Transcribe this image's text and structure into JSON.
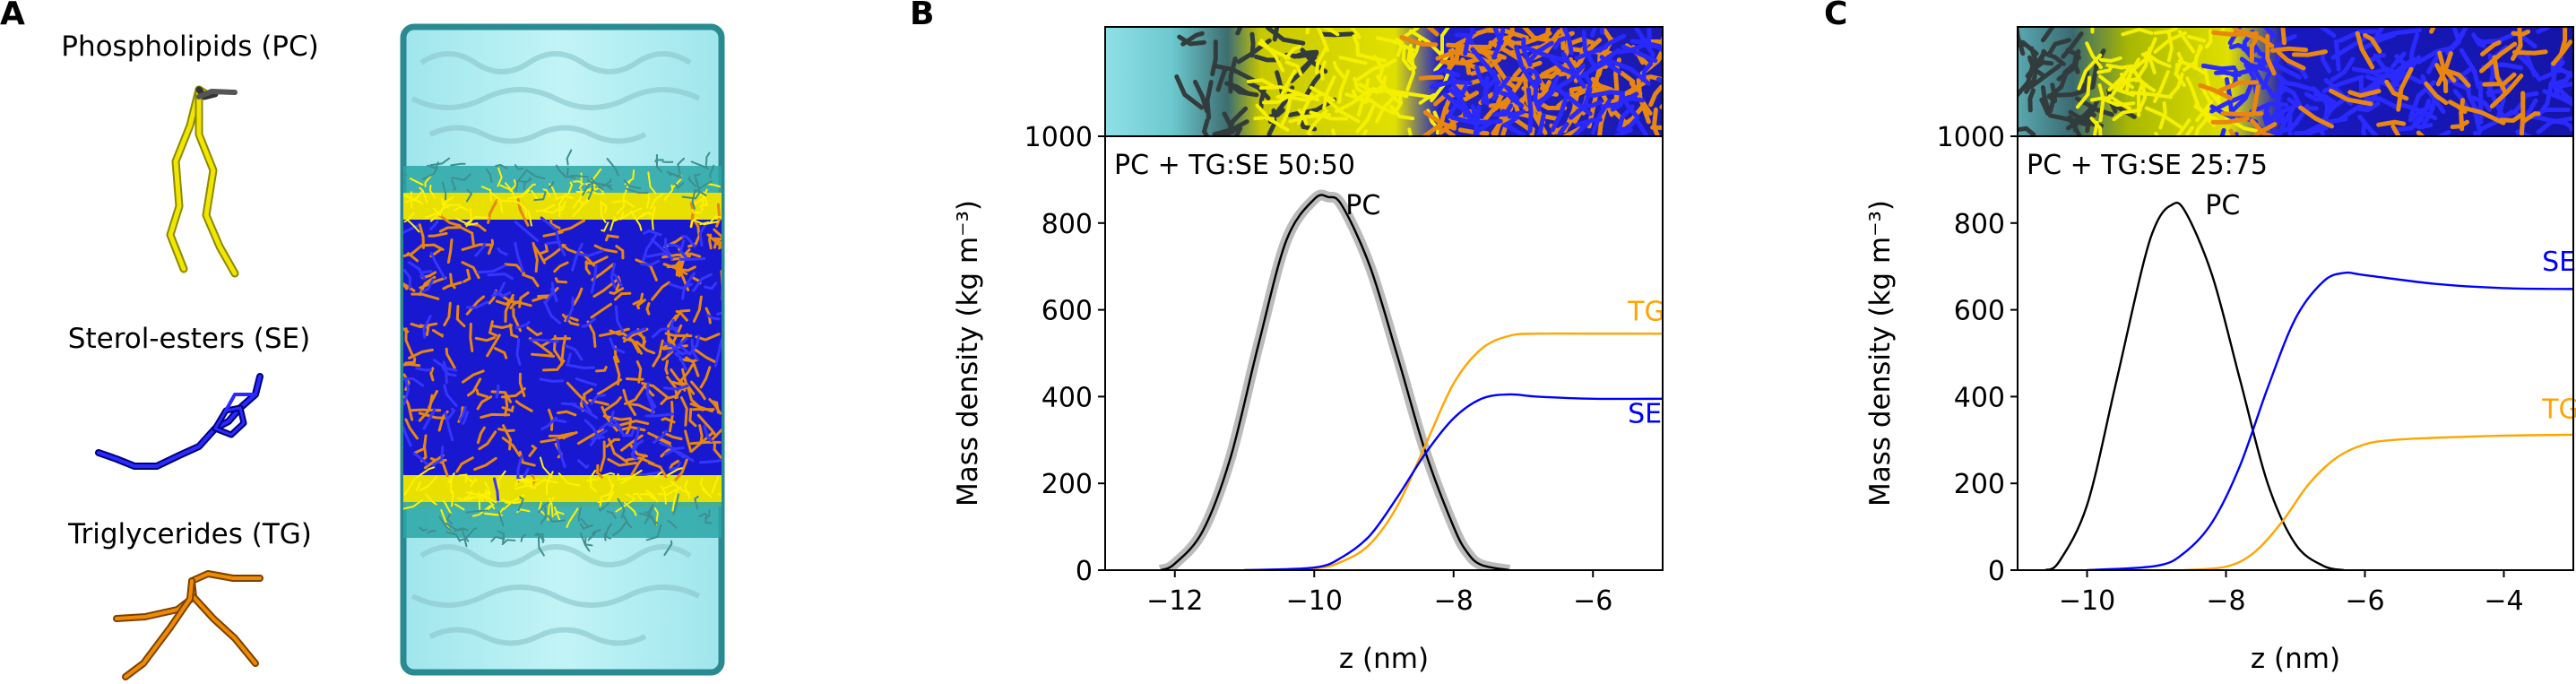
{
  "panels": {
    "a": {
      "letter": "A"
    },
    "b": {
      "letter": "B"
    },
    "c": {
      "letter": "C"
    }
  },
  "molecules": [
    {
      "label": "Phospholipids (PC)",
      "color": "#f2e600",
      "icon": "pc-lipid-icon"
    },
    {
      "label": "Sterol-esters (SE)",
      "color": "#1a1aff",
      "icon": "se-lipid-icon"
    },
    {
      "label": "Triglycerides (TG)",
      "color": "#f08a00",
      "icon": "tg-lipid-icon"
    }
  ],
  "colors": {
    "water": "#aeeef2",
    "water_edge": "#2a8a92",
    "pc": "#f2e600",
    "pc_head": "#2aa6a6",
    "se": "#1010d8",
    "tg": "#e8860e",
    "curve_pc": "#000000",
    "curve_tg": "#ffa500",
    "curve_se": "#0000ff",
    "band": "#bbbbbb"
  },
  "chart_data": [
    {
      "id": "b",
      "type": "line",
      "annotation": "PC + TG:SE 50:50",
      "xlabel": "z (nm)",
      "ylabel": "Mass density (kg m⁻³)",
      "xlim": [
        -13,
        -5
      ],
      "ylim": [
        0,
        1000
      ],
      "xticks": [
        -12,
        -10,
        -8,
        -6
      ],
      "xtick_labels": [
        "−12",
        "−10",
        "−8",
        "−6"
      ],
      "yticks": [
        0,
        200,
        400,
        600,
        800,
        1000
      ],
      "ytick_labels": [
        "0",
        "200",
        "400",
        "600",
        "800",
        "1000"
      ],
      "series": [
        {
          "name": "PC",
          "color": "#000000",
          "band": true,
          "x": [
            -12.2,
            -12.0,
            -11.6,
            -11.2,
            -10.8,
            -10.4,
            -10.0,
            -9.8,
            -9.6,
            -9.2,
            -8.8,
            -8.4,
            -8.0,
            -7.8,
            -7.6,
            -7.2
          ],
          "y": [
            0,
            15,
            90,
            260,
            520,
            760,
            855,
            860,
            840,
            700,
            490,
            270,
            100,
            40,
            12,
            0
          ],
          "label_at": [
            -9.55,
            820
          ]
        },
        {
          "name": "TG",
          "color": "#ffa500",
          "x": [
            -11.0,
            -10.0,
            -9.6,
            -9.2,
            -8.8,
            -8.4,
            -8.0,
            -7.6,
            -7.2,
            -6.8,
            -6.0,
            -5.0
          ],
          "y": [
            0,
            4,
            20,
            60,
            150,
            290,
            430,
            510,
            540,
            545,
            545,
            545
          ],
          "label_at": [
            -5.5,
            575
          ]
        },
        {
          "name": "SE",
          "color": "#0000ff",
          "x": [
            -11.0,
            -10.0,
            -9.6,
            -9.2,
            -8.8,
            -8.4,
            -8.0,
            -7.6,
            -7.2,
            -6.8,
            -6.0,
            -5.0
          ],
          "y": [
            0,
            6,
            30,
            80,
            170,
            270,
            350,
            395,
            405,
            400,
            395,
            395
          ],
          "label_at": [
            -5.5,
            340
          ]
        }
      ]
    },
    {
      "id": "c",
      "type": "line",
      "annotation": "PC + TG:SE 25:75",
      "xlabel": "z (nm)",
      "ylabel": "Mass density (kg m⁻³)",
      "xlim": [
        -11,
        -3
      ],
      "ylim": [
        0,
        1000
      ],
      "xticks": [
        -10,
        -8,
        -6,
        -4
      ],
      "xtick_labels": [
        "−10",
        "−8",
        "−6",
        "−4"
      ],
      "yticks": [
        0,
        200,
        400,
        600,
        800,
        1000
      ],
      "ytick_labels": [
        "0",
        "200",
        "400",
        "600",
        "800",
        "1000"
      ],
      "series": [
        {
          "name": "PC",
          "color": "#000000",
          "x": [
            -10.6,
            -10.4,
            -10.0,
            -9.6,
            -9.2,
            -9.0,
            -8.8,
            -8.6,
            -8.2,
            -7.8,
            -7.4,
            -7.0,
            -6.6,
            -6.3
          ],
          "y": [
            0,
            20,
            150,
            420,
            700,
            800,
            840,
            830,
            680,
            440,
            200,
            60,
            10,
            0
          ],
          "label_at": [
            -8.3,
            820
          ]
        },
        {
          "name": "SE",
          "color": "#0000ff",
          "x": [
            -10.0,
            -9.0,
            -8.6,
            -8.2,
            -7.8,
            -7.4,
            -7.0,
            -6.6,
            -6.3,
            -6.0,
            -5.0,
            -4.0,
            -3.0
          ],
          "y": [
            0,
            10,
            40,
            110,
            240,
            420,
            580,
            665,
            685,
            680,
            660,
            650,
            648
          ],
          "label_at": [
            -3.45,
            690
          ]
        },
        {
          "name": "TG",
          "color": "#ffa500",
          "x": [
            -8.6,
            -8.0,
            -7.6,
            -7.2,
            -6.8,
            -6.4,
            -6.0,
            -5.6,
            -5.0,
            -4.0,
            -3.0
          ],
          "y": [
            0,
            8,
            40,
            110,
            200,
            260,
            290,
            300,
            305,
            310,
            312
          ],
          "label_at": [
            -3.45,
            350
          ]
        }
      ]
    }
  ]
}
